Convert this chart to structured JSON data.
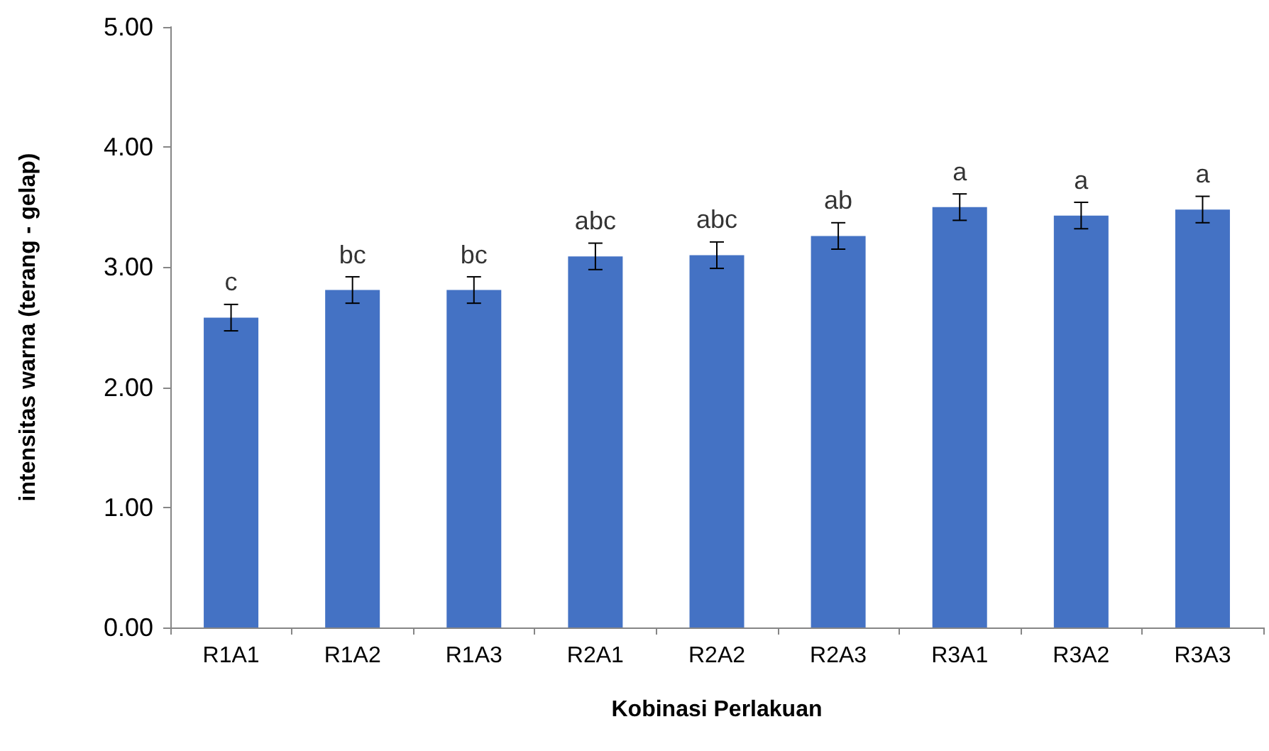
{
  "chart_data": {
    "type": "bar",
    "xlabel": "Kobinasi Perlakuan",
    "ylabel": "intensitas warna (terang - gelap)",
    "categories": [
      "R1A1",
      "R1A2",
      "R1A3",
      "R2A1",
      "R2A2",
      "R2A3",
      "R3A1",
      "R3A2",
      "R3A3"
    ],
    "values": [
      2.58,
      2.81,
      2.81,
      3.09,
      3.1,
      3.26,
      3.5,
      3.43,
      3.48
    ],
    "errors": [
      0.11,
      0.11,
      0.11,
      0.11,
      0.11,
      0.11,
      0.11,
      0.11,
      0.11
    ],
    "color": "#4472c4",
    "ylim": [
      0,
      5
    ],
    "yticks": [
      {
        "value": 0,
        "label": "0.00"
      },
      {
        "value": 1,
        "label": "1.00"
      },
      {
        "value": 2,
        "label": "2.00"
      },
      {
        "value": 3,
        "label": "3.00"
      },
      {
        "value": 4,
        "label": "4.00"
      },
      {
        "value": 5,
        "label": "5.00"
      }
    ],
    "annotations": [
      {
        "text": "c",
        "x": "R1A1",
        "y": 2.58
      },
      {
        "text": "bc",
        "x": "R1A2",
        "y": 2.81
      },
      {
        "text": "bc",
        "x": "R1A3",
        "y": 2.81
      },
      {
        "text": "abc",
        "x": "R2A1",
        "y": 3.09
      },
      {
        "text": "abc",
        "x": "R2A2",
        "y": 3.1
      },
      {
        "text": "ab",
        "x": "R2A3",
        "y": 3.26
      },
      {
        "text": "a",
        "x": "R3A1",
        "y": 3.5
      },
      {
        "text": "a",
        "x": "R3A2",
        "y": 3.43
      },
      {
        "text": "a",
        "x": "R3A3",
        "y": 3.48
      }
    ],
    "grid": false
  }
}
